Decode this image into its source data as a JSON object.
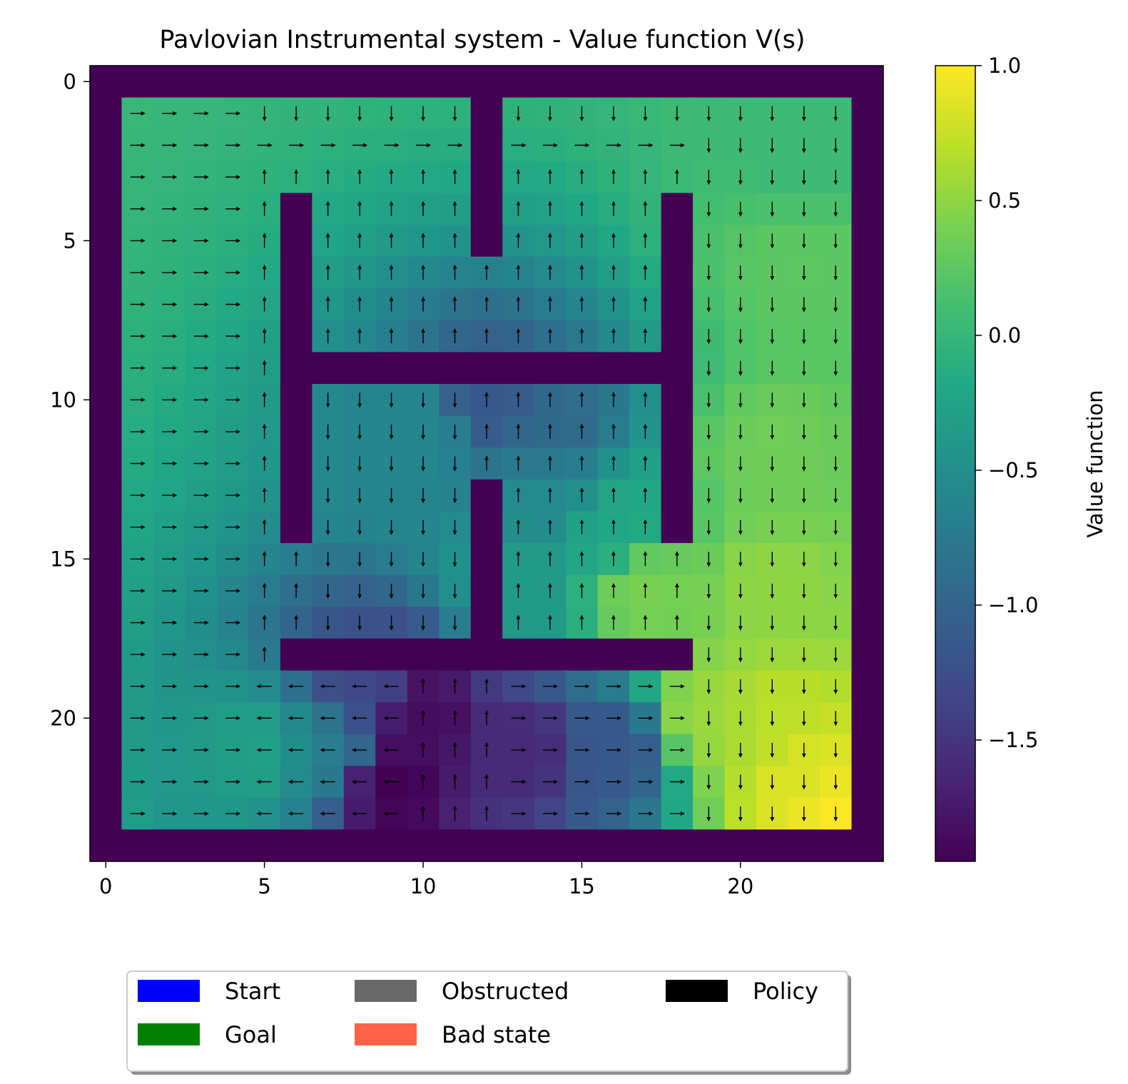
{
  "chart_data": {
    "type": "heatmap",
    "title": "Pavlovian Instrumental system - Value function V(s)",
    "grid_size": [
      25,
      25
    ],
    "x_ticks": [
      "0",
      "5",
      "10",
      "15",
      "20"
    ],
    "y_ticks": [
      "0",
      "5",
      "10",
      "15",
      "20"
    ],
    "colorbar": {
      "label": "Value function",
      "ticks": [
        "1.0",
        "0.5",
        "0.0",
        "−0.5",
        "−1.0",
        "−1.5"
      ],
      "tick_values": [
        1.0,
        0.5,
        0.0,
        -0.5,
        -1.0,
        -1.5
      ],
      "range": [
        -1.95,
        1.0
      ],
      "colormap": "viridis"
    },
    "walls": {
      "border": true,
      "segments": [
        {
          "col": 12,
          "rows": [
            1,
            5
          ]
        },
        {
          "col": 6,
          "rows": [
            4,
            14
          ]
        },
        {
          "col": 18,
          "rows": [
            4,
            14
          ]
        },
        {
          "row": 9,
          "cols": [
            6,
            18
          ]
        },
        {
          "col": 12,
          "rows": [
            13,
            17
          ]
        },
        {
          "row": 18,
          "cols": [
            6,
            18
          ]
        }
      ]
    },
    "value_map": {
      "default": 0.05,
      "anchors": [
        {
          "r": 23,
          "c": 23,
          "v": 1.0
        },
        {
          "r": 22,
          "c": 22,
          "v": 0.85
        },
        {
          "r": 20,
          "c": 21,
          "v": 0.7
        },
        {
          "r": 16,
          "c": 21,
          "v": 0.5
        },
        {
          "r": 12,
          "c": 21,
          "v": 0.35
        },
        {
          "r": 6,
          "c": 22,
          "v": 0.25
        },
        {
          "r": 2,
          "c": 22,
          "v": 0.05
        },
        {
          "r": 16,
          "c": 17,
          "v": 0.4
        },
        {
          "r": 20,
          "c": 19,
          "v": 0.55
        },
        {
          "r": 22,
          "c": 9,
          "v": -1.95
        },
        {
          "r": 20,
          "c": 10,
          "v": -1.85
        },
        {
          "r": 21,
          "c": 13,
          "v": -1.6
        },
        {
          "r": 21,
          "c": 16,
          "v": -1.15
        },
        {
          "r": 19,
          "c": 8,
          "v": -1.3
        },
        {
          "r": 21,
          "c": 7,
          "v": -0.7
        },
        {
          "r": 21,
          "c": 5,
          "v": -0.3
        },
        {
          "r": 10,
          "c": 12,
          "v": -1.15
        },
        {
          "r": 11,
          "c": 14,
          "v": -0.95
        },
        {
          "r": 11,
          "c": 10,
          "v": -0.6
        },
        {
          "r": 13,
          "c": 14,
          "v": -0.55
        },
        {
          "r": 16,
          "c": 13,
          "v": -0.35
        },
        {
          "r": 14,
          "c": 16,
          "v": -0.2
        }
      ]
    },
    "policy_sample": {
      "rows_1_to_23_cols_1_to_5": "right",
      "col_5": "up",
      "cols_19_to_23": "down",
      "region_rows_19_to_23_cols_5_to_9": "left",
      "region_rows_19_to_23_cols_13_to_18": "right",
      "region_rows_10_to_17_cols_7_to_11": "down"
    },
    "legend": {
      "placement": "below",
      "entries": [
        {
          "label": "Start",
          "color": "#0000ff"
        },
        {
          "label": "Goal",
          "color": "#008000"
        },
        {
          "label": "Obstructed",
          "color": "#696969"
        },
        {
          "label": "Bad state",
          "color": "#ff6347"
        },
        {
          "label": "Policy",
          "color": "#000000"
        }
      ]
    },
    "wall_color": "#440154"
  }
}
